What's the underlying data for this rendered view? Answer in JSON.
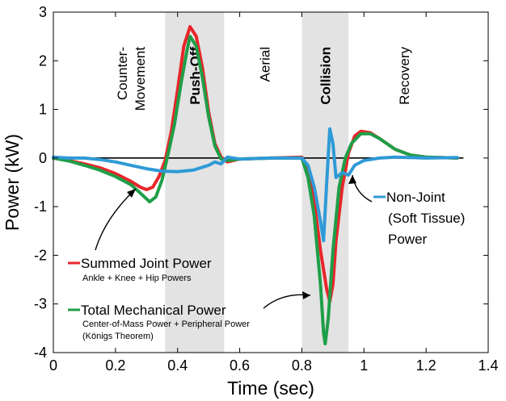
{
  "chart_data": {
    "type": "line",
    "xlabel": "Time (sec)",
    "ylabel": "Power (kW)",
    "xlim": [
      0,
      1.4
    ],
    "ylim": [
      -4,
      3
    ],
    "xticks": [
      "0",
      "0.2",
      "0.4",
      "0.6",
      "0.8",
      "1",
      "1.2",
      "1.4"
    ],
    "yticks": [
      "3",
      "2",
      "1",
      "0",
      "-1",
      "-2",
      "-3",
      "-4"
    ],
    "grid": false,
    "zero_line": true,
    "shaded_regions": [
      {
        "x0": 0.36,
        "x1": 0.55,
        "color": "#e3e3e3"
      },
      {
        "x0": 0.8,
        "x1": 0.95,
        "color": "#e3e3e3"
      }
    ],
    "phases": [
      {
        "lines": [
          "Counter-",
          "Movement"
        ],
        "bold": false
      },
      {
        "lines": [
          "Push-Off"
        ],
        "bold": true
      },
      {
        "lines": [
          "Aerial"
        ],
        "bold": false
      },
      {
        "lines": [
          "Collision"
        ],
        "bold": true
      },
      {
        "lines": [
          "Recovery"
        ],
        "bold": false
      }
    ],
    "series": [
      {
        "name": "Summed Joint Power",
        "color": "#e8262a",
        "points": [
          [
            0,
            0
          ],
          [
            0.05,
            -0.05
          ],
          [
            0.1,
            -0.12
          ],
          [
            0.15,
            -0.2
          ],
          [
            0.2,
            -0.32
          ],
          [
            0.25,
            -0.48
          ],
          [
            0.28,
            -0.6
          ],
          [
            0.3,
            -0.65
          ],
          [
            0.32,
            -0.6
          ],
          [
            0.34,
            -0.38
          ],
          [
            0.36,
            -0.05
          ],
          [
            0.38,
            0.55
          ],
          [
            0.4,
            1.4
          ],
          [
            0.42,
            2.3
          ],
          [
            0.44,
            2.7
          ],
          [
            0.46,
            2.5
          ],
          [
            0.48,
            1.85
          ],
          [
            0.5,
            0.95
          ],
          [
            0.52,
            0.3
          ],
          [
            0.54,
            0.02
          ],
          [
            0.56,
            -0.08
          ],
          [
            0.6,
            -0.02
          ],
          [
            0.7,
            0
          ],
          [
            0.8,
            0.02
          ],
          [
            0.82,
            -0.25
          ],
          [
            0.84,
            -0.9
          ],
          [
            0.86,
            -1.9
          ],
          [
            0.88,
            -2.7
          ],
          [
            0.89,
            -2.95
          ],
          [
            0.9,
            -2.6
          ],
          [
            0.91,
            -1.7
          ],
          [
            0.93,
            -0.6
          ],
          [
            0.95,
            0.1
          ],
          [
            0.97,
            0.45
          ],
          [
            0.99,
            0.55
          ],
          [
            1.02,
            0.52
          ],
          [
            1.05,
            0.4
          ],
          [
            1.1,
            0.18
          ],
          [
            1.15,
            0.06
          ],
          [
            1.2,
            0.02
          ],
          [
            1.3,
            0
          ]
        ]
      },
      {
        "name": "Total Mechanical Power",
        "color": "#1f9e48",
        "points": [
          [
            0,
            0
          ],
          [
            0.05,
            -0.06
          ],
          [
            0.1,
            -0.15
          ],
          [
            0.15,
            -0.25
          ],
          [
            0.2,
            -0.38
          ],
          [
            0.25,
            -0.55
          ],
          [
            0.28,
            -0.72
          ],
          [
            0.31,
            -0.9
          ],
          [
            0.33,
            -0.8
          ],
          [
            0.35,
            -0.45
          ],
          [
            0.37,
            0.1
          ],
          [
            0.39,
            0.7
          ],
          [
            0.41,
            1.5
          ],
          [
            0.43,
            2.2
          ],
          [
            0.44,
            2.5
          ],
          [
            0.46,
            2.3
          ],
          [
            0.48,
            1.65
          ],
          [
            0.5,
            0.85
          ],
          [
            0.52,
            0.25
          ],
          [
            0.54,
            -0.02
          ],
          [
            0.56,
            -0.05
          ],
          [
            0.6,
            -0.02
          ],
          [
            0.7,
            0
          ],
          [
            0.8,
            0
          ],
          [
            0.82,
            -0.4
          ],
          [
            0.84,
            -1.2
          ],
          [
            0.86,
            -2.6
          ],
          [
            0.87,
            -3.6
          ],
          [
            0.875,
            -3.82
          ],
          [
            0.885,
            -3.3
          ],
          [
            0.9,
            -1.9
          ],
          [
            0.92,
            -0.6
          ],
          [
            0.94,
            0
          ],
          [
            0.96,
            0.3
          ],
          [
            0.99,
            0.5
          ],
          [
            1.02,
            0.5
          ],
          [
            1.05,
            0.4
          ],
          [
            1.1,
            0.18
          ],
          [
            1.15,
            0.06
          ],
          [
            1.2,
            0.02
          ],
          [
            1.3,
            0
          ]
        ]
      },
      {
        "name": "Non-Joint (Soft Tissue) Power",
        "color": "#2f9ad6",
        "points": [
          [
            0,
            0.02
          ],
          [
            0.05,
            0
          ],
          [
            0.1,
            0
          ],
          [
            0.15,
            -0.03
          ],
          [
            0.2,
            -0.08
          ],
          [
            0.25,
            -0.15
          ],
          [
            0.3,
            -0.22
          ],
          [
            0.35,
            -0.27
          ],
          [
            0.4,
            -0.28
          ],
          [
            0.45,
            -0.25
          ],
          [
            0.5,
            -0.15
          ],
          [
            0.52,
            -0.08
          ],
          [
            0.54,
            -0.12
          ],
          [
            0.56,
            0.02
          ],
          [
            0.6,
            -0.02
          ],
          [
            0.7,
            0
          ],
          [
            0.8,
            0
          ],
          [
            0.82,
            -0.15
          ],
          [
            0.84,
            -0.6
          ],
          [
            0.86,
            -1.3
          ],
          [
            0.87,
            -1.7
          ],
          [
            0.88,
            -0.5
          ],
          [
            0.89,
            0.6
          ],
          [
            0.9,
            0.3
          ],
          [
            0.91,
            -0.4
          ],
          [
            0.93,
            -0.3
          ],
          [
            0.95,
            -0.35
          ],
          [
            0.97,
            -0.15
          ],
          [
            1.0,
            -0.05
          ],
          [
            1.05,
            0
          ],
          [
            1.1,
            0.02
          ],
          [
            1.2,
            0
          ],
          [
            1.3,
            0.01
          ]
        ]
      }
    ],
    "annotations": {
      "summed_title": "Summed Joint Power",
      "summed_sub": "Ankle + Knee + Hip Powers",
      "total_title": "Total Mechanical Power",
      "total_sub": "Center-of-Mass Power + Peripheral Power",
      "total_sub2": "(Königs Theorem)",
      "nonjoint_l1": "Non-Joint",
      "nonjoint_l2": "(Soft Tissue)",
      "nonjoint_l3": "Power"
    }
  }
}
